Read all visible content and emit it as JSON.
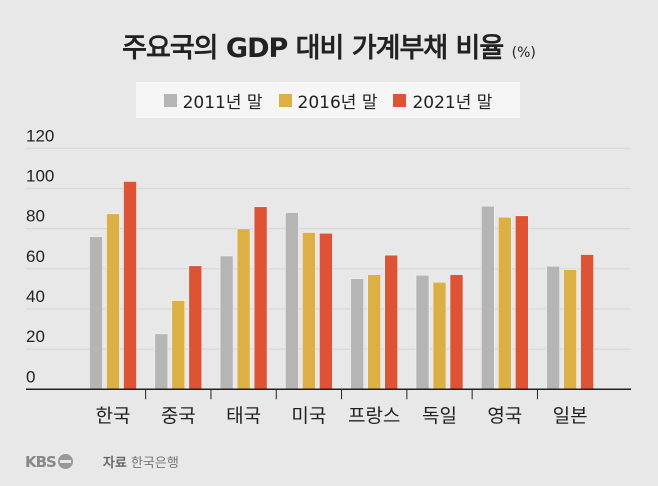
{
  "chart_data": {
    "type": "bar",
    "title": "주요국의 GDP 대비 가계부채 비율",
    "title_unit": "(%)",
    "categories": [
      "한국",
      "중국",
      "태국",
      "미국",
      "프랑스",
      "독일",
      "영국",
      "일본"
    ],
    "series": [
      {
        "name": "2011년 말",
        "color": "#b5b5b5",
        "values": [
          76,
          27.6,
          66.4,
          88,
          55.1,
          56.8,
          91.2,
          61.3
        ]
      },
      {
        "name": "2016년 말",
        "color": "#dcb044",
        "values": [
          87.4,
          44.2,
          79.9,
          78.1,
          57.1,
          53.3,
          85.7,
          59.6
        ]
      },
      {
        "name": "2021년 말",
        "color": "#de5334",
        "values": [
          103.5,
          61.5,
          90.9,
          77.7,
          66.8,
          57.1,
          86.4,
          67.1
        ]
      }
    ],
    "yticks": [
      "0",
      "20",
      "40",
      "60",
      "80",
      "100",
      "120"
    ],
    "ylim": [
      0,
      120
    ],
    "grid": true,
    "legend": "top"
  },
  "footer": {
    "logo": "KBS",
    "source_label": "자료",
    "source": "한국은행"
  }
}
